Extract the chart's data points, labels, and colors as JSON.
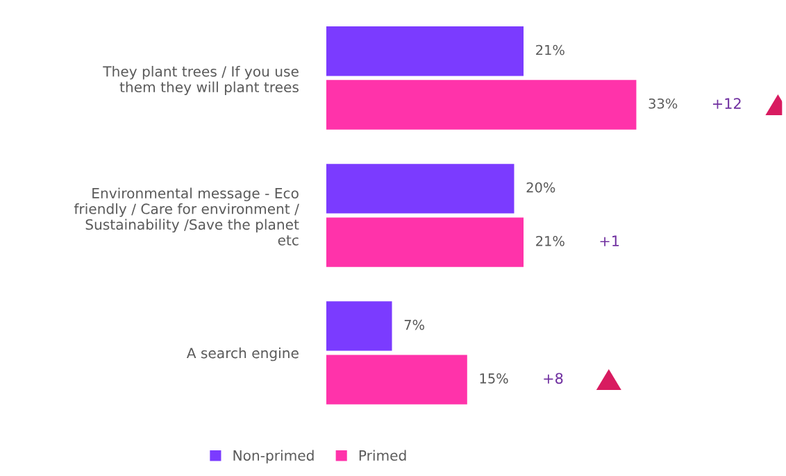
{
  "chart_data": {
    "type": "bar",
    "orientation": "horizontal",
    "categories": [
      "They plant trees / If you use\nthem they will plant trees",
      "Environmental message - Eco\nfriendly / Care for environment /\nSustainability /Save the planet\netc",
      "A search engine"
    ],
    "series": [
      {
        "name": "Non-primed",
        "color": "#7b3bff",
        "values": [
          21,
          20,
          7
        ],
        "value_labels": [
          "21%",
          "20%",
          "7%"
        ]
      },
      {
        "name": "Primed",
        "color": "#ff33aa",
        "values": [
          33,
          21,
          15
        ],
        "value_labels": [
          "33%",
          "21%",
          "15%"
        ]
      }
    ],
    "annotations": [
      "+12",
      "+1",
      "+8"
    ],
    "legend": "bottom",
    "grid": false
  }
}
